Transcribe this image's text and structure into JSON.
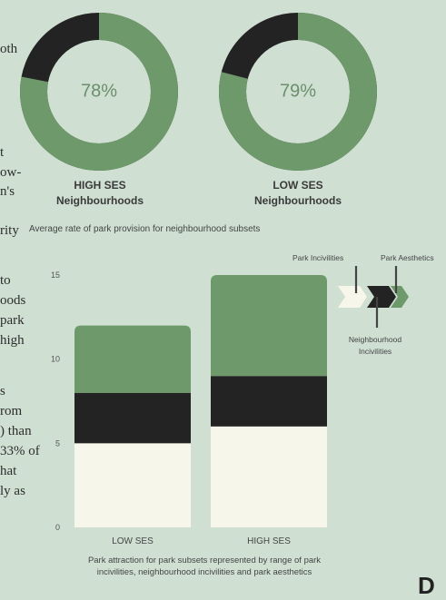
{
  "rings": [
    {
      "pct_label": "78%",
      "value": 78,
      "line1": "HIGH SES",
      "line2": "Neighbourhoods"
    },
    {
      "pct_label": "79%",
      "value": 79,
      "line1": "LOW SES",
      "line2": "Neighbourhoods"
    }
  ],
  "ring_caption": "Average rate of park provision for neighbourhood subsets",
  "side_text": [
    "oth",
    "t",
    "ow-",
    "n's",
    "rity",
    "to",
    "oods",
    "park",
    "high",
    "s",
    "rom",
    ") than",
    "33% of",
    "hat",
    "ly as"
  ],
  "legend": {
    "park_incivilities": "Park Incivilities",
    "park_aesthetics": "Park Aesthetics",
    "neighbourhood_line1": "Neighbourhood",
    "neighbourhood_line2": "Incivilities"
  },
  "bottom_caption_line1": "Park attraction for park subsets represented by range of park",
  "bottom_caption_line2": "incivilities, neighbourhood incivilities and park aesthetics",
  "colors": {
    "bg": "#cfe0d3",
    "green": "#6e9a6b",
    "dark": "#232323",
    "cream": "#f7f6ea"
  },
  "chart_data": {
    "type": "bar",
    "stacked": true,
    "categories": [
      "LOW SES",
      "HIGH SES"
    ],
    "series": [
      {
        "name": "Park Aesthetics",
        "values": [
          5,
          6
        ],
        "color": "#f7f6ea"
      },
      {
        "name": "Neighbourhood Incivilities",
        "values": [
          3,
          3
        ],
        "color": "#232323"
      },
      {
        "name": "Park Incivilities",
        "values": [
          4,
          6
        ],
        "color": "#6e9a6b"
      }
    ],
    "yticks": [
      0,
      5,
      10,
      15
    ],
    "ylim": [
      0,
      15
    ],
    "grid": false
  }
}
